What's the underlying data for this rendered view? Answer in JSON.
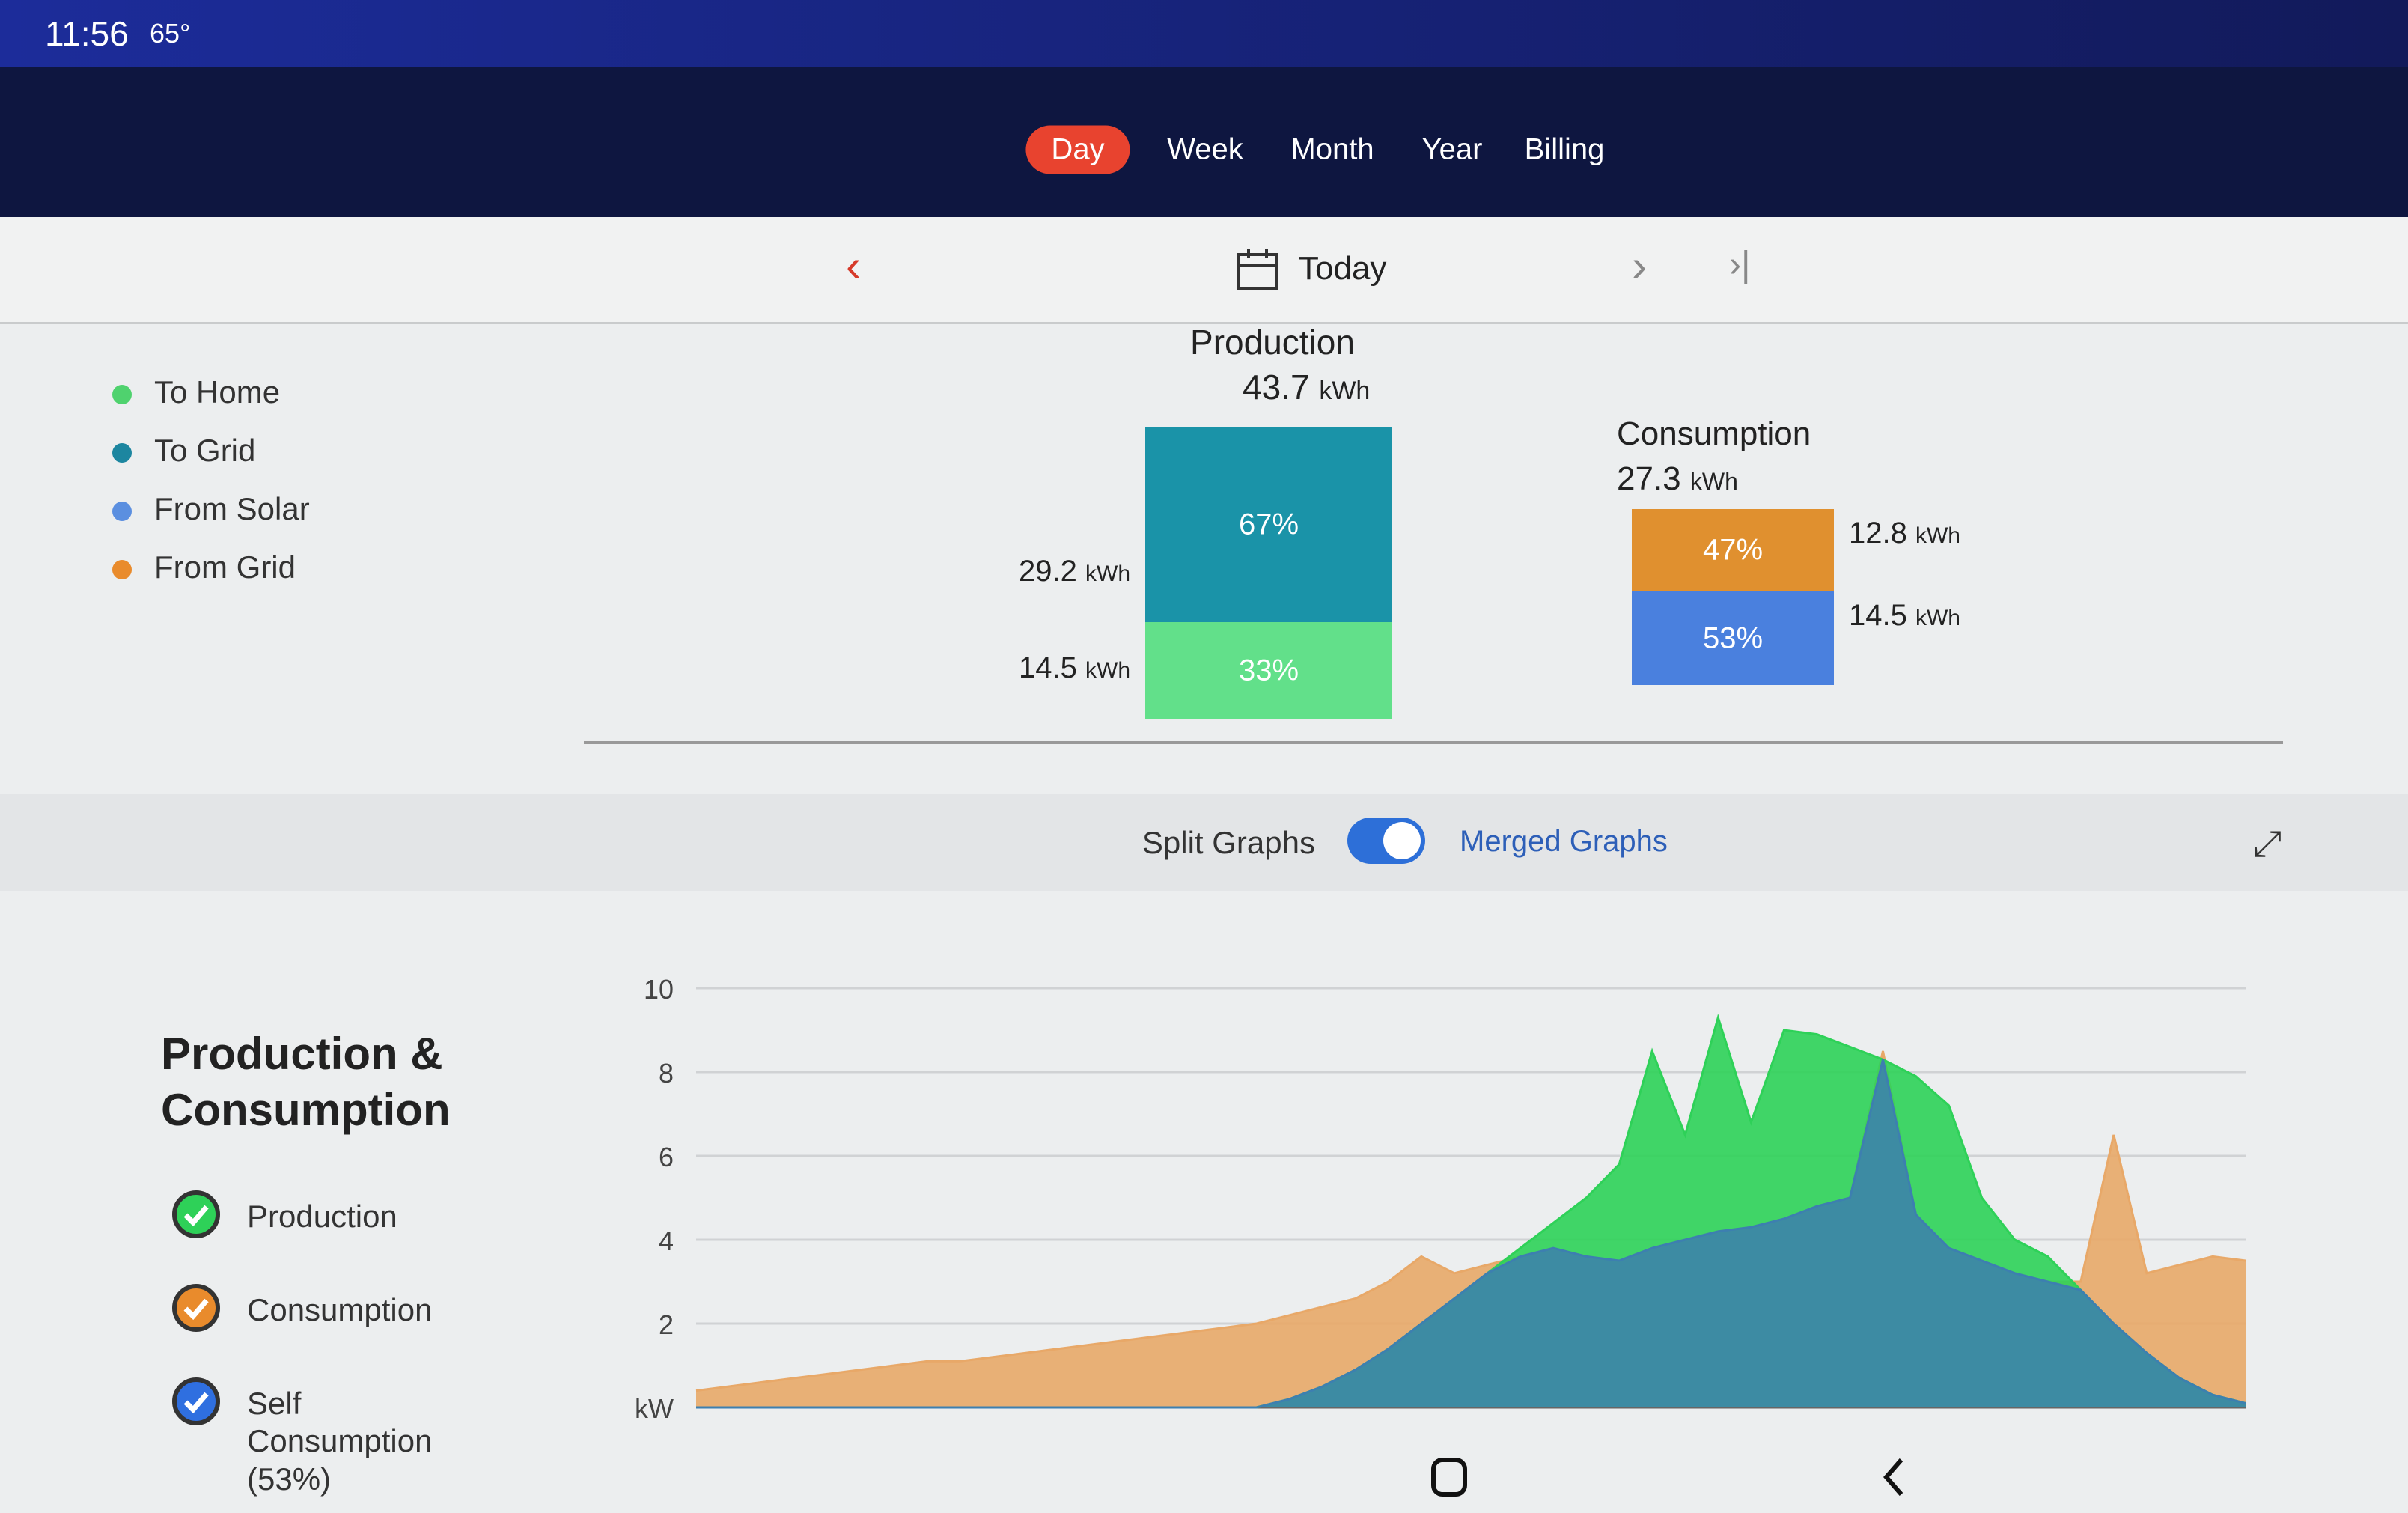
{
  "status_bar": {
    "time": "11:56",
    "temperature": "65°"
  },
  "tabs": [
    {
      "label": "Day",
      "active": true
    },
    {
      "label": "Week",
      "active": false
    },
    {
      "label": "Month",
      "active": false
    },
    {
      "label": "Year",
      "active": false
    },
    {
      "label": "Billing",
      "active": false
    }
  ],
  "date_nav": {
    "label": "Today"
  },
  "legend": [
    {
      "label": "To Home",
      "color": "#4fd26e"
    },
    {
      "label": "To Grid",
      "color": "#1c86a0"
    },
    {
      "label": "From Solar",
      "color": "#5b8fe0"
    },
    {
      "label": "From Grid",
      "color": "#e98b2c"
    }
  ],
  "production": {
    "title": "Production",
    "total": 43.7,
    "unit": "kWh",
    "segments": [
      {
        "amount": 29.2,
        "unit": "kWh",
        "percent": 67,
        "percent_label": "67%",
        "color": "#1a93a8"
      },
      {
        "amount": 14.5,
        "unit": "kWh",
        "percent": 33,
        "percent_label": "33%",
        "color": "#62e08a"
      }
    ]
  },
  "consumption": {
    "title": "Consumption",
    "total": 27.3,
    "unit": "kWh",
    "segments": [
      {
        "amount": 12.8,
        "unit": "kWh",
        "percent": 47,
        "percent_label": "47%",
        "color": "#e0902f"
      },
      {
        "amount": 14.5,
        "unit": "kWh",
        "percent": 53,
        "percent_label": "53%",
        "color": "#4a80de"
      }
    ]
  },
  "toggle": {
    "left": "Split Graphs",
    "right": "Merged Graphs"
  },
  "chart_data": {
    "type": "area",
    "title": "Production & Consumption",
    "ylim": [
      0,
      10
    ],
    "yticks": [
      {
        "value": 0,
        "label": "kW"
      },
      2,
      4,
      6,
      8,
      10
    ],
    "grid": true,
    "series": [
      {
        "name": "Consumption",
        "color": "#e8a868",
        "check_color": "#e98b2c",
        "values": [
          0.4,
          0.5,
          0.6,
          0.7,
          0.8,
          0.9,
          1.0,
          1.1,
          1.1,
          1.2,
          1.3,
          1.4,
          1.5,
          1.6,
          1.7,
          1.8,
          1.9,
          2.0,
          2.2,
          2.4,
          2.6,
          3.0,
          3.6,
          3.2,
          3.4,
          3.6,
          3.8,
          3.6,
          3.5,
          3.8,
          4.0,
          4.2,
          4.3,
          4.5,
          4.8,
          5.0,
          8.5,
          4.6,
          3.8,
          3.5,
          3.2,
          3.0,
          3.0,
          6.5,
          3.2,
          3.4,
          3.6,
          3.5
        ]
      },
      {
        "name": "Production",
        "color": "#2ed158",
        "check_color": "#2ed158",
        "values": [
          0,
          0,
          0,
          0,
          0,
          0,
          0,
          0,
          0,
          0,
          0,
          0,
          0,
          0,
          0,
          0,
          0,
          0,
          0.2,
          0.5,
          0.9,
          1.4,
          2.0,
          2.6,
          3.2,
          3.8,
          4.4,
          5.0,
          5.8,
          8.5,
          6.5,
          9.3,
          6.8,
          9.0,
          8.9,
          8.6,
          8.3,
          7.9,
          7.2,
          5.0,
          4.0,
          3.6,
          2.8,
          2.0,
          1.3,
          0.7,
          0.3,
          0.1
        ]
      },
      {
        "name": "Self Consumption (53%)",
        "color": "#3d7fb0",
        "check_color": "#2f6fe0",
        "values": [
          0,
          0,
          0,
          0,
          0,
          0,
          0,
          0,
          0,
          0,
          0,
          0,
          0,
          0,
          0,
          0,
          0,
          0,
          0.2,
          0.5,
          0.9,
          1.4,
          2.0,
          2.6,
          3.2,
          3.6,
          3.8,
          3.6,
          3.5,
          3.8,
          4.0,
          4.2,
          4.3,
          4.5,
          4.8,
          5.0,
          8.3,
          4.6,
          3.8,
          3.5,
          3.2,
          3.0,
          2.8,
          2.0,
          1.3,
          0.7,
          0.3,
          0.1
        ]
      }
    ],
    "legend_order": [
      1,
      0,
      2
    ]
  }
}
